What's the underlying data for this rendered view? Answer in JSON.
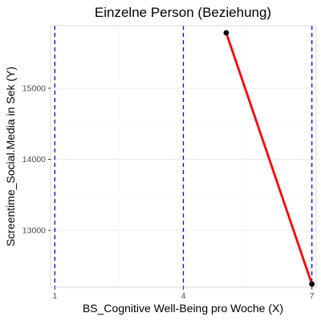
{
  "chart_data": {
    "type": "line",
    "title": "Einzelne Person (Beziehung)",
    "xlabel": "BS_Cognitive Well-Being pro Woche (X)",
    "ylabel": "Screentime_Social.Media in Sek (Y)",
    "xlim": [
      0.9,
      7.1
    ],
    "ylim": [
      12200,
      15880
    ],
    "x_ticks": [
      1,
      4,
      7
    ],
    "y_ticks": [
      13000,
      14000,
      15000
    ],
    "x_tick_labels": [
      "1",
      "4",
      "7"
    ],
    "y_tick_labels": [
      "13000",
      "14000",
      "15000"
    ],
    "grid": true,
    "legend": "none",
    "series": [
      {
        "x": [
          5.0,
          7.0
        ],
        "y": [
          15780,
          12245
        ],
        "line_color": "#ff0000",
        "point_color": "#000000"
      }
    ],
    "vertical_reference_lines": [
      {
        "x": 1,
        "color": "#0000ff",
        "style": "dashed"
      },
      {
        "x": 4,
        "color": "#0000ff",
        "style": "dashed"
      },
      {
        "x": 7,
        "color": "#0000ff",
        "style": "dashed"
      }
    ],
    "colors": {
      "background": "#ffffff",
      "grid_major": "#ebebeb",
      "grid_minor": "#f5f5f5",
      "panel_border": "#d9d9d9"
    }
  }
}
